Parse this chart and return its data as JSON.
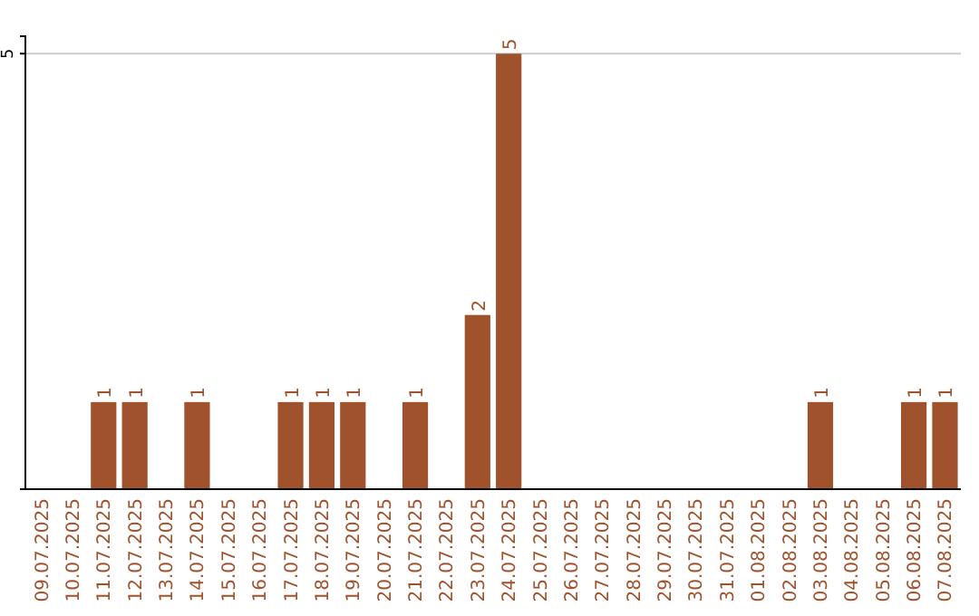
{
  "chart_data": {
    "type": "bar",
    "categories": [
      "09.07.2025",
      "10.07.2025",
      "11.07.2025",
      "12.07.2025",
      "13.07.2025",
      "14.07.2025",
      "15.07.2025",
      "16.07.2025",
      "17.07.2025",
      "18.07.2025",
      "19.07.2025",
      "20.07.2025",
      "21.07.2025",
      "22.07.2025",
      "23.07.2025",
      "24.07.2025",
      "25.07.2025",
      "26.07.2025",
      "27.07.2025",
      "28.07.2025",
      "29.07.2025",
      "30.07.2025",
      "31.07.2025",
      "01.08.2025",
      "02.08.2025",
      "03.08.2025",
      "04.08.2025",
      "05.08.2025",
      "06.08.2025",
      "07.08.2025"
    ],
    "values": [
      0,
      0,
      1,
      1,
      0,
      1,
      0,
      0,
      1,
      1,
      1,
      0,
      1,
      0,
      2,
      5,
      0,
      0,
      0,
      0,
      0,
      0,
      0,
      0,
      0,
      1,
      0,
      0,
      1,
      1
    ],
    "value_labels": [
      null,
      null,
      "1",
      "1",
      null,
      "1",
      null,
      null,
      "1",
      "1",
      "1",
      null,
      "1",
      null,
      "2",
      "5",
      null,
      null,
      null,
      null,
      null,
      null,
      null,
      null,
      null,
      "1",
      null,
      null,
      "1",
      "1"
    ],
    "color": "#a0522d",
    "ylim": [
      0,
      5.2
    ],
    "yticks": [
      5
    ],
    "grid": "y"
  }
}
